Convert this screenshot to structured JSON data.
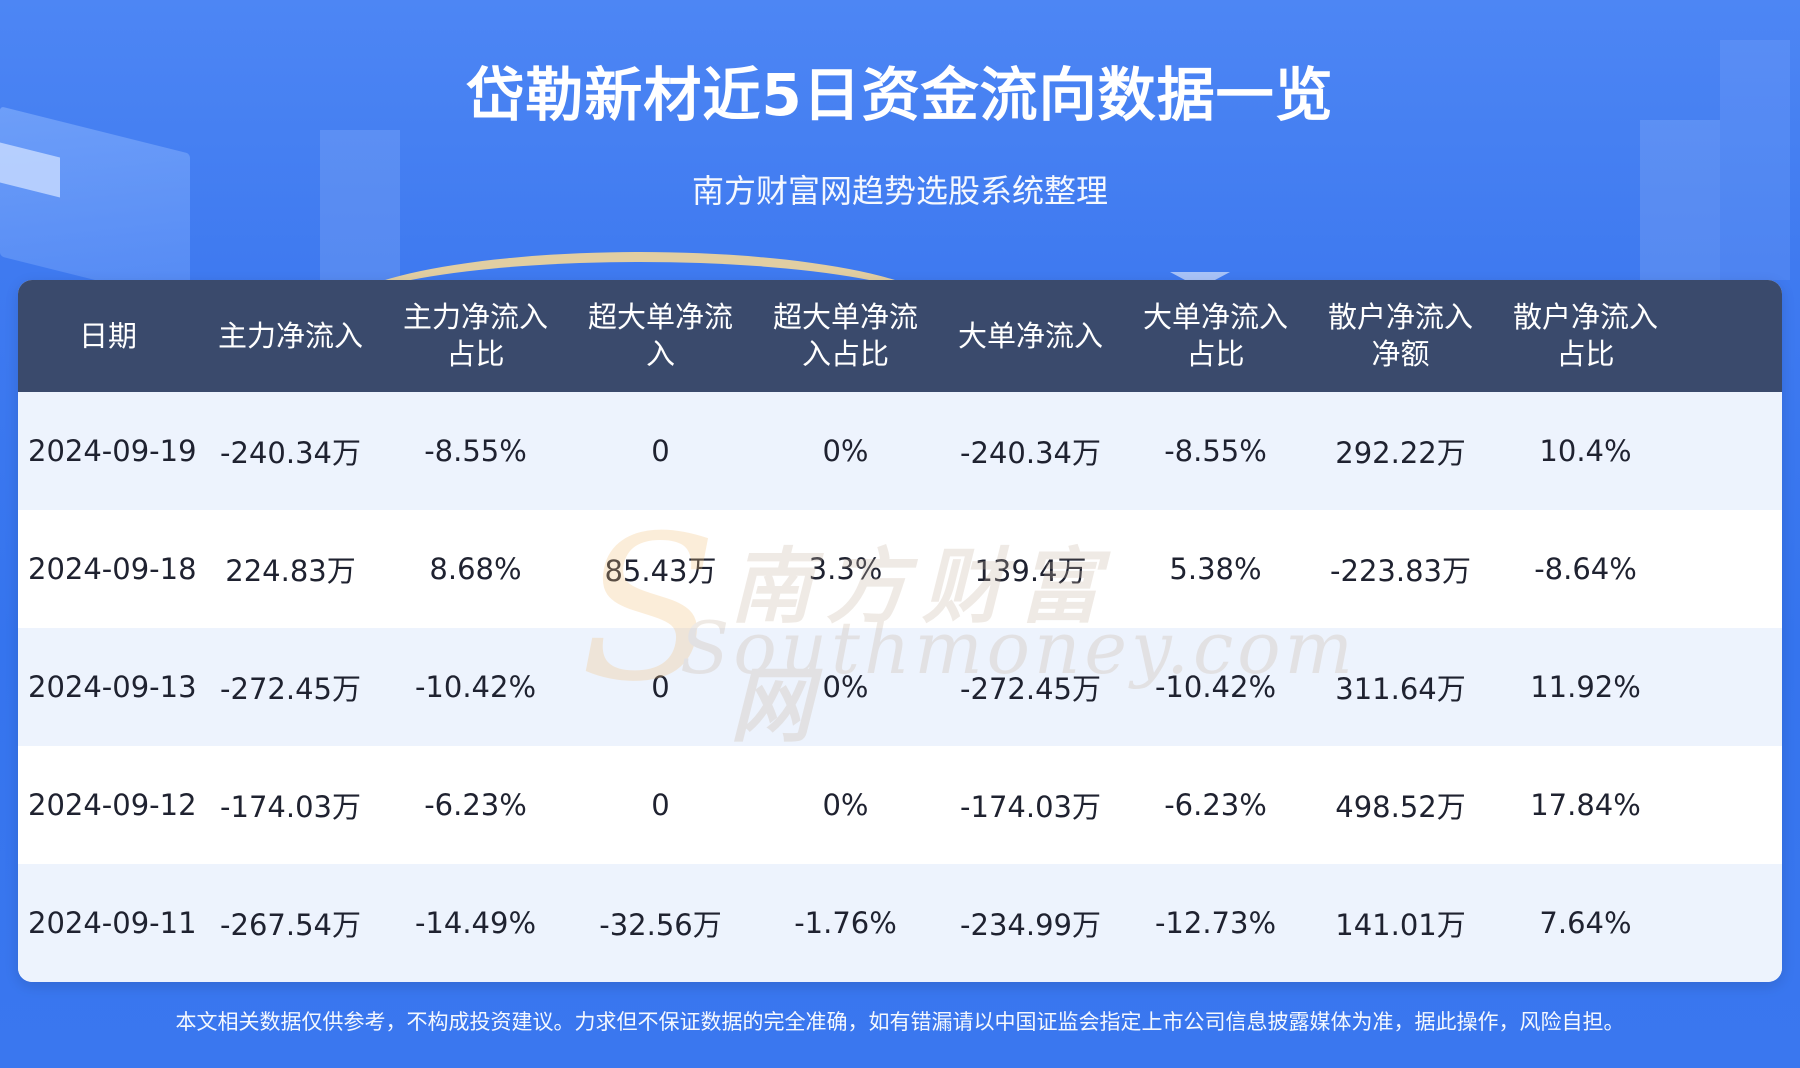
{
  "title": "岱勒新材近5日资金流向数据一览",
  "subtitle": "南方财富网趋势选股系统整理",
  "table": {
    "headers": [
      "日期",
      "主力净流入",
      "主力净流入\n占比",
      "超大单净流\n入",
      "超大单净流\n入占比",
      "大单净流入",
      "大单净流入\n占比",
      "散户净流入\n净额",
      "散户净流入\n占比"
    ],
    "rows": [
      [
        "2024-09-19",
        "-240.34万",
        "-8.55%",
        "0",
        "0%",
        "-240.34万",
        "-8.55%",
        "292.22万",
        "10.4%"
      ],
      [
        "2024-09-18",
        "224.83万",
        "8.68%",
        "85.43万",
        "3.3%",
        "139.4万",
        "5.38%",
        "-223.83万",
        "-8.64%"
      ],
      [
        "2024-09-13",
        "-272.45万",
        "-10.42%",
        "0",
        "0%",
        "-272.45万",
        "-10.42%",
        "311.64万",
        "11.92%"
      ],
      [
        "2024-09-12",
        "-174.03万",
        "-6.23%",
        "0",
        "0%",
        "-174.03万",
        "-6.23%",
        "498.52万",
        "17.84%"
      ],
      [
        "2024-09-11",
        "-267.54万",
        "-14.49%",
        "-32.56万",
        "-1.76%",
        "-234.99万",
        "-12.73%",
        "141.01万",
        "7.64%"
      ]
    ]
  },
  "watermark": {
    "cn": "南方财富网",
    "en": "Southmoney.com"
  },
  "footer": "本文相关数据仅供参考，不构成投资建议。力求但不保证数据的完全准确，如有错漏请以中国证监会指定上市公司信息披露媒体为准，据此操作，风险自担。",
  "colors": {
    "background": "#3f7af0",
    "header_row": "#3a4a6c",
    "odd_row": "#edf3fd",
    "even_row": "#ffffff"
  }
}
